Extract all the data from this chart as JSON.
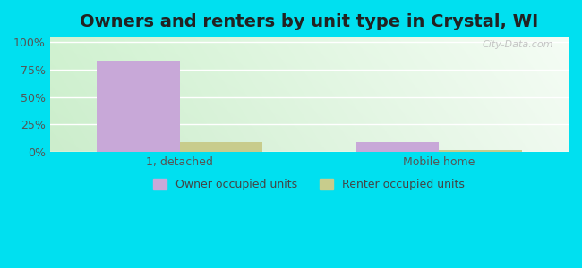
{
  "title": "Owners and renters by unit type in Crystal, WI",
  "categories": [
    "1, detached",
    "Mobile home"
  ],
  "owner_values": [
    83,
    9
  ],
  "renter_values": [
    9,
    2
  ],
  "owner_color": "#c8a8d8",
  "renter_color": "#c8cc8c",
  "yticks": [
    0,
    25,
    50,
    75,
    100
  ],
  "ytick_labels": [
    "0%",
    "25%",
    "50%",
    "75%",
    "100%"
  ],
  "ylim": [
    0,
    105
  ],
  "bar_width": 0.32,
  "outer_bg": "#00e0f0",
  "title_fontsize": 14,
  "legend_labels": [
    "Owner occupied units",
    "Renter occupied units"
  ],
  "watermark": "City-Data.com",
  "grid_color": "#dddddd"
}
